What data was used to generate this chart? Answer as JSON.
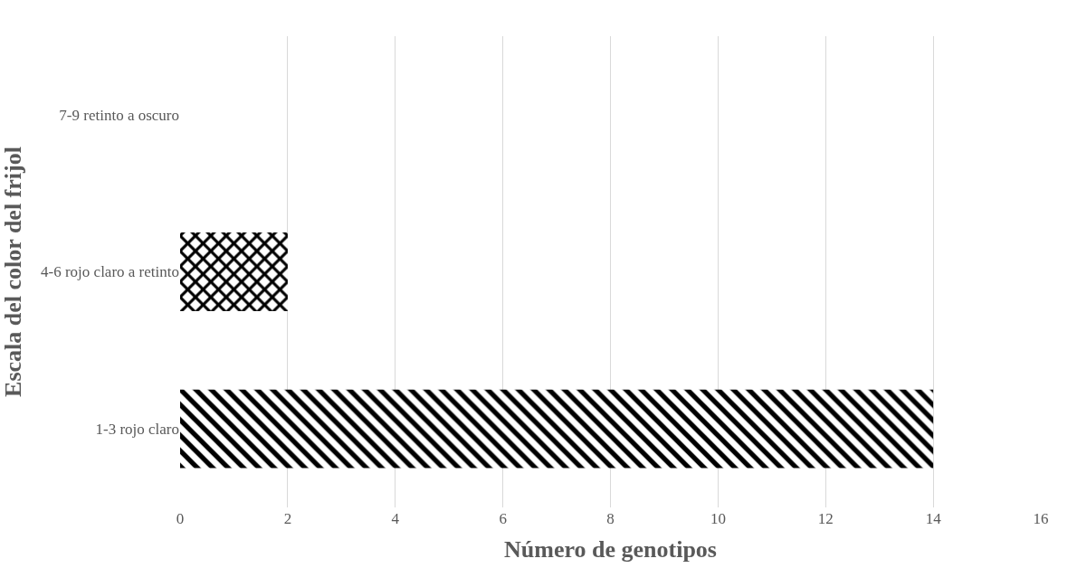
{
  "chart_data": {
    "type": "bar",
    "orientation": "horizontal",
    "categories": [
      "7-9 retinto a oscuro",
      "4-6 rojo claro a retinto",
      "1-3 rojo claro"
    ],
    "values": [
      0,
      2,
      14
    ],
    "colors": [
      "#000000",
      "#000000",
      "#000000"
    ],
    "xlabel": "Número de genotipos",
    "ylabel": "Escala del color del frijol",
    "xlim": [
      0,
      16
    ],
    "xticks": [
      0,
      2,
      4,
      6,
      8,
      10,
      12,
      14,
      16
    ],
    "grid": "x"
  }
}
